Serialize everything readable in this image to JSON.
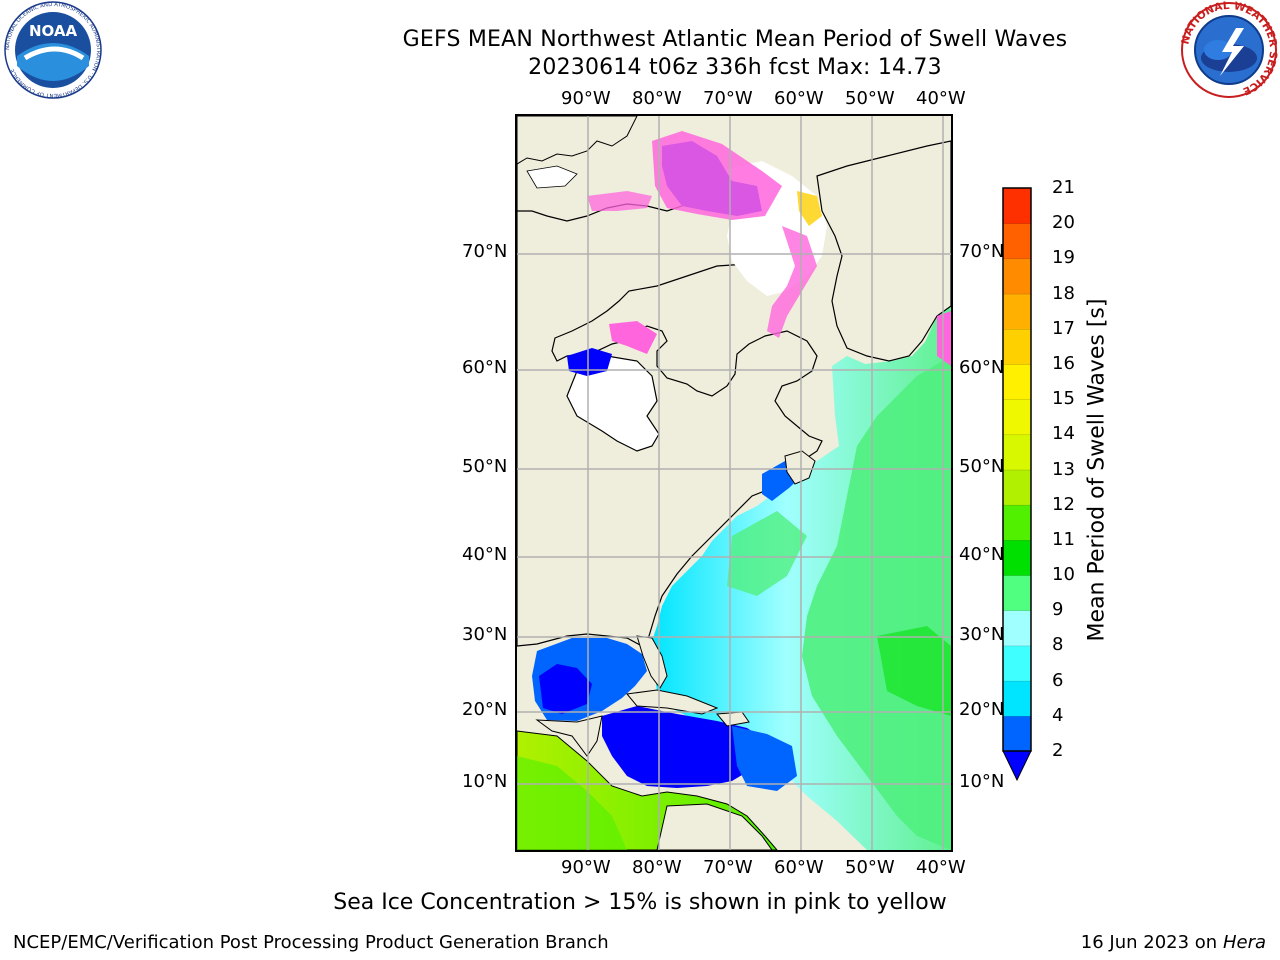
{
  "header": {
    "title": "GEFS MEAN Northwest Atlantic Mean Period of Swell Waves",
    "subtitle": "20230614 t06z 336h fcst   Max: 14.73"
  },
  "map": {
    "lon_labels": [
      "90°W",
      "80°W",
      "70°W",
      "60°W",
      "50°W",
      "40°W"
    ],
    "lat_labels": [
      "70°N",
      "60°N",
      "50°N",
      "40°N",
      "30°N",
      "20°N",
      "10°N"
    ],
    "land_color": "#efeddc",
    "grid_color": "#b0b0b0"
  },
  "colorbar": {
    "title": "Mean Period of Swell Waves [s]",
    "ticks": [
      "2",
      "4",
      "6",
      "8",
      "9",
      "10",
      "11",
      "12",
      "13",
      "14",
      "15",
      "16",
      "17",
      "18",
      "19",
      "20",
      "21"
    ],
    "colors": [
      "#0064ff",
      "#00e5ff",
      "#40ffff",
      "#a0ffff",
      "#50ff80",
      "#00e000",
      "#50f000",
      "#b0f000",
      "#d8f800",
      "#f0f800",
      "#fff000",
      "#ffd000",
      "#ffb000",
      "#ff8c00",
      "#ff6000",
      "#ff3000",
      "#ff0000"
    ],
    "under_color": "#0000ff"
  },
  "footer": {
    "ice_note": "Sea Ice Concentration > 15% is shown in pink to yellow",
    "branch": "NCEP/EMC/Verification Post Processing Product Generation Branch",
    "date": "16 Jun 2023 on",
    "machine": "Hera"
  },
  "logos": {
    "noaa": "NOAA",
    "noaa_ring": "NATIONAL OCEANIC AND ATMOSPHERIC ADMINISTRATION · U.S. DEPARTMENT OF COMMERCE",
    "nws_ring": "NATIONAL WEATHER SERVICE"
  }
}
